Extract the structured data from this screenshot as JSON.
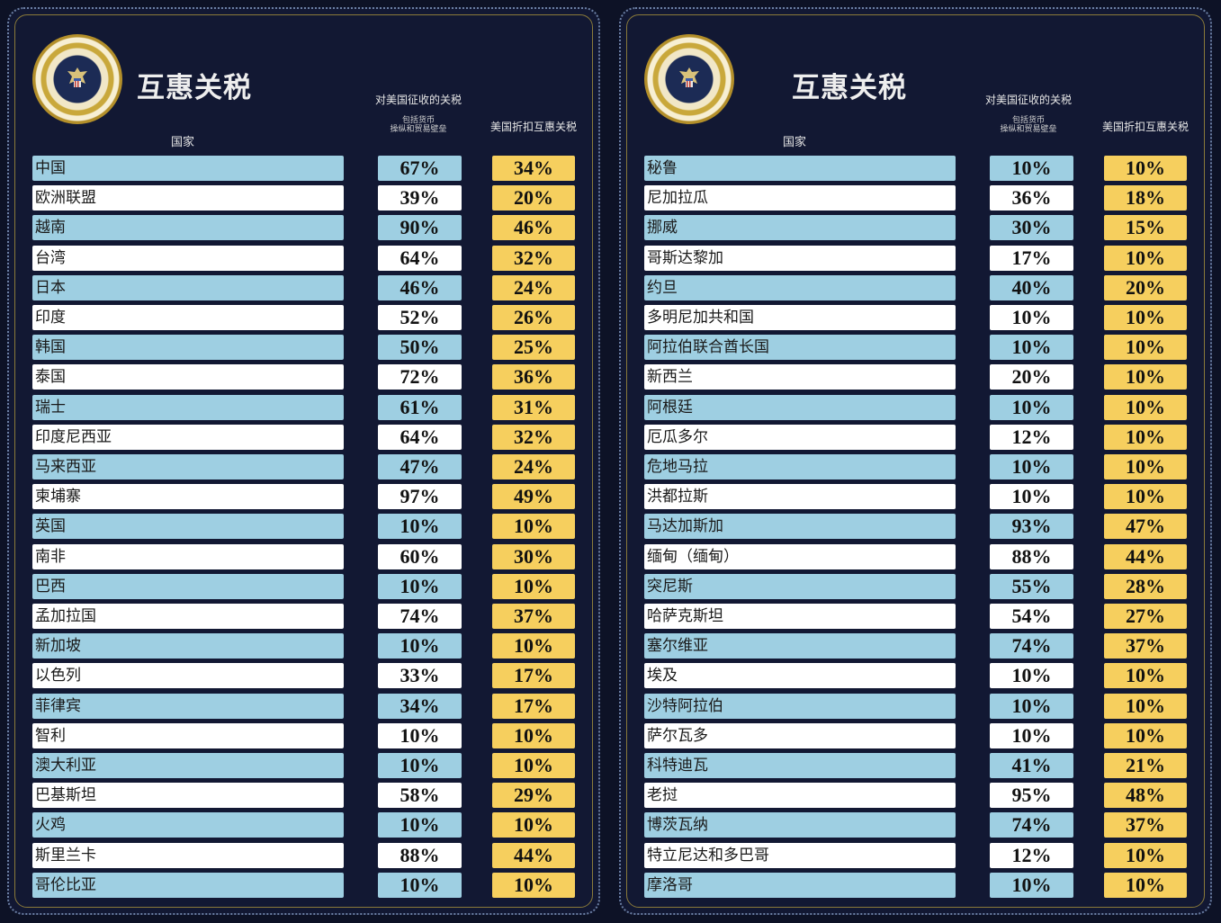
{
  "chart_data": [
    {
      "type": "table",
      "title": "互惠关税",
      "columns": {
        "country": "国家",
        "levied": "对美国征收的关税",
        "levied_sub_1": "包括货币",
        "levied_sub_2": "操纵和贸易壁垒",
        "reciprocal": "美国折扣互惠关税"
      },
      "seal_text": "PRESIDENT OF THE UNITED",
      "rows": [
        {
          "country": "中国",
          "levied": "67%",
          "reciprocal": "34%"
        },
        {
          "country": "欧洲联盟",
          "levied": "39%",
          "reciprocal": "20%"
        },
        {
          "country": "越南",
          "levied": "90%",
          "reciprocal": "46%"
        },
        {
          "country": "台湾",
          "levied": "64%",
          "reciprocal": "32%"
        },
        {
          "country": "日本",
          "levied": "46%",
          "reciprocal": "24%"
        },
        {
          "country": "印度",
          "levied": "52%",
          "reciprocal": "26%"
        },
        {
          "country": "韩国",
          "levied": "50%",
          "reciprocal": "25%"
        },
        {
          "country": "泰国",
          "levied": "72%",
          "reciprocal": "36%"
        },
        {
          "country": "瑞士",
          "levied": "61%",
          "reciprocal": "31%"
        },
        {
          "country": "印度尼西亚",
          "levied": "64%",
          "reciprocal": "32%"
        },
        {
          "country": "马来西亚",
          "levied": "47%",
          "reciprocal": "24%"
        },
        {
          "country": "柬埔寨",
          "levied": "97%",
          "reciprocal": "49%"
        },
        {
          "country": "英国",
          "levied": "10%",
          "reciprocal": "10%"
        },
        {
          "country": "南非",
          "levied": "60%",
          "reciprocal": "30%"
        },
        {
          "country": "巴西",
          "levied": "10%",
          "reciprocal": "10%"
        },
        {
          "country": "孟加拉国",
          "levied": "74%",
          "reciprocal": "37%"
        },
        {
          "country": "新加坡",
          "levied": "10%",
          "reciprocal": "10%"
        },
        {
          "country": "以色列",
          "levied": "33%",
          "reciprocal": "17%"
        },
        {
          "country": "菲律宾",
          "levied": "34%",
          "reciprocal": "17%"
        },
        {
          "country": "智利",
          "levied": "10%",
          "reciprocal": "10%"
        },
        {
          "country": "澳大利亚",
          "levied": "10%",
          "reciprocal": "10%"
        },
        {
          "country": "巴基斯坦",
          "levied": "58%",
          "reciprocal": "29%"
        },
        {
          "country": "火鸡",
          "levied": "10%",
          "reciprocal": "10%"
        },
        {
          "country": "斯里兰卡",
          "levied": "88%",
          "reciprocal": "44%"
        },
        {
          "country": "哥伦比亚",
          "levied": "10%",
          "reciprocal": "10%"
        }
      ]
    },
    {
      "type": "table",
      "title": "互惠关税",
      "columns": {
        "country": "国家",
        "levied": "对美国征收的关税",
        "levied_sub_1": "包括货币",
        "levied_sub_2": "操纵和贸易壁垒",
        "reciprocal": "美国折扣互惠关税"
      },
      "seal_text": "RESIDENT OF THE UNITED STATES",
      "rows": [
        {
          "country": "秘鲁",
          "levied": "10%",
          "reciprocal": "10%"
        },
        {
          "country": "尼加拉瓜",
          "levied": "36%",
          "reciprocal": "18%"
        },
        {
          "country": "挪威",
          "levied": "30%",
          "reciprocal": "15%"
        },
        {
          "country": "哥斯达黎加",
          "levied": "17%",
          "reciprocal": "10%"
        },
        {
          "country": "约旦",
          "levied": "40%",
          "reciprocal": "20%"
        },
        {
          "country": "多明尼加共和国",
          "levied": "10%",
          "reciprocal": "10%"
        },
        {
          "country": "阿拉伯联合酋长国",
          "levied": "10%",
          "reciprocal": "10%"
        },
        {
          "country": "新西兰",
          "levied": "20%",
          "reciprocal": "10%"
        },
        {
          "country": "阿根廷",
          "levied": "10%",
          "reciprocal": "10%"
        },
        {
          "country": "厄瓜多尔",
          "levied": "12%",
          "reciprocal": "10%"
        },
        {
          "country": "危地马拉",
          "levied": "10%",
          "reciprocal": "10%"
        },
        {
          "country": "洪都拉斯",
          "levied": "10%",
          "reciprocal": "10%"
        },
        {
          "country": "马达加斯加",
          "levied": "93%",
          "reciprocal": "47%"
        },
        {
          "country": "缅甸（缅甸）",
          "levied": "88%",
          "reciprocal": "44%"
        },
        {
          "country": "突尼斯",
          "levied": "55%",
          "reciprocal": "28%"
        },
        {
          "country": "哈萨克斯坦",
          "levied": "54%",
          "reciprocal": "27%"
        },
        {
          "country": "塞尔维亚",
          "levied": "74%",
          "reciprocal": "37%"
        },
        {
          "country": "埃及",
          "levied": "10%",
          "reciprocal": "10%"
        },
        {
          "country": "沙特阿拉伯",
          "levied": "10%",
          "reciprocal": "10%"
        },
        {
          "country": "萨尔瓦多",
          "levied": "10%",
          "reciprocal": "10%"
        },
        {
          "country": "科特迪瓦",
          "levied": "41%",
          "reciprocal": "21%"
        },
        {
          "country": "老挝",
          "levied": "95%",
          "reciprocal": "48%"
        },
        {
          "country": "博茨瓦纳",
          "levied": "74%",
          "reciprocal": "37%"
        },
        {
          "country": "特立尼达和多巴哥",
          "levied": "12%",
          "reciprocal": "10%"
        },
        {
          "country": "摩洛哥",
          "levied": "10%",
          "reciprocal": "10%"
        }
      ]
    }
  ],
  "colors": {
    "background": "#0d1226",
    "row_blue": "#9ecfe2",
    "row_white": "#ffffff",
    "reciprocal_gold": "#f6cf5e"
  },
  "icons": {
    "seal": "presidential-seal-icon"
  }
}
